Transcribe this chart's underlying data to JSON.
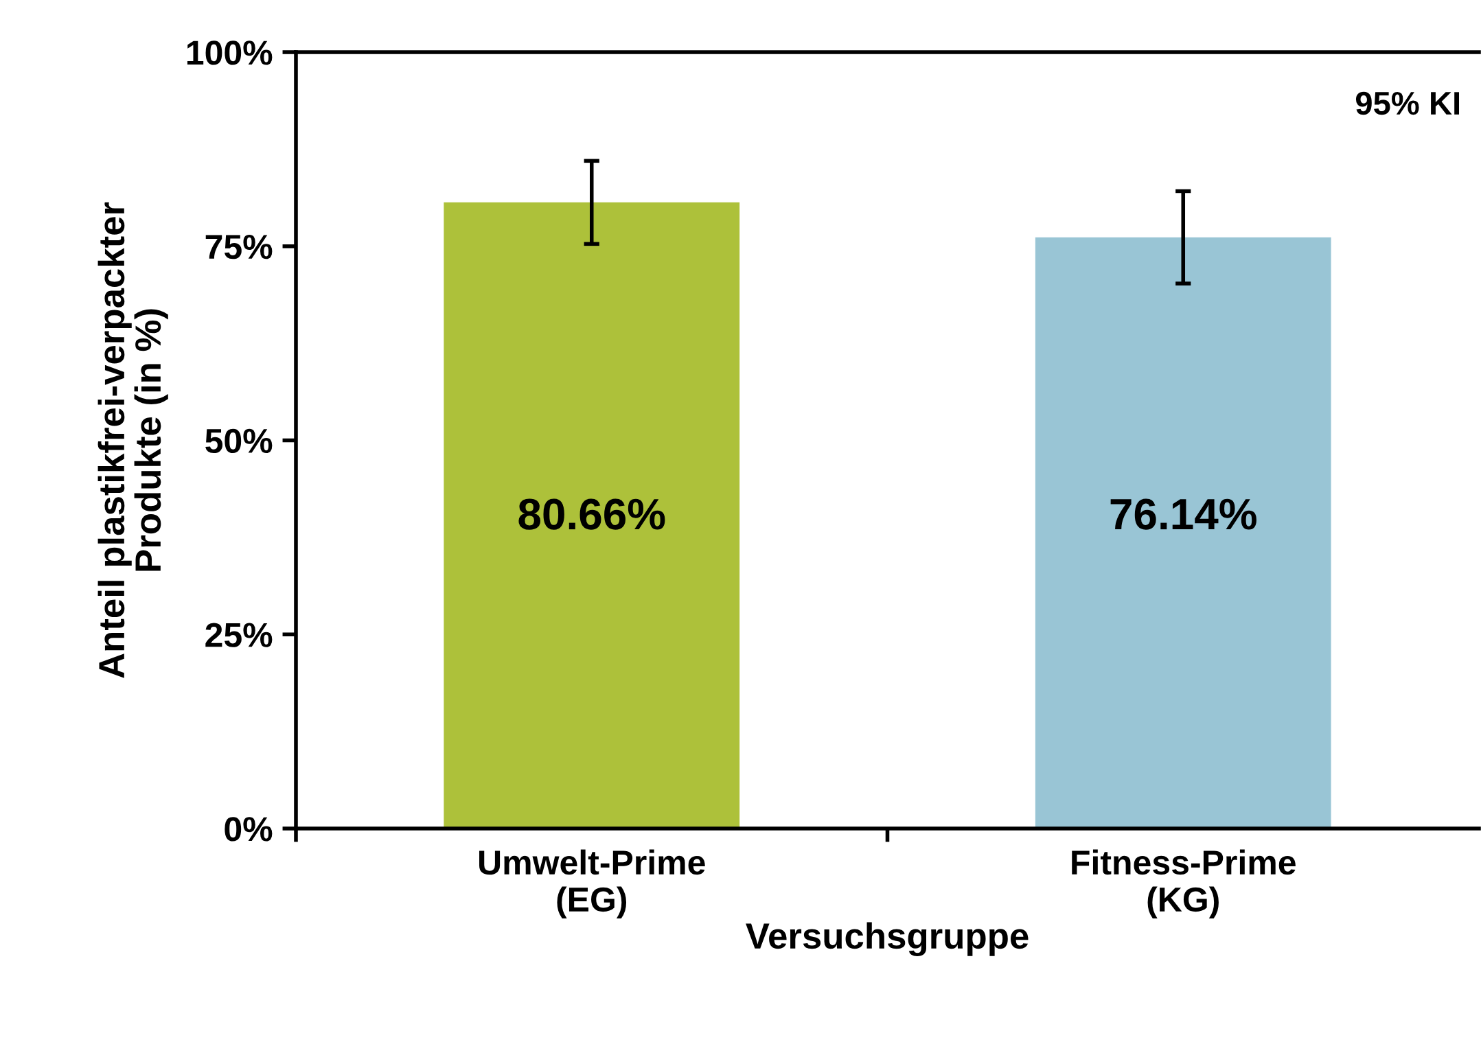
{
  "chart_data": {
    "type": "bar",
    "categories": [
      "Umwelt-Prime\n(EG)",
      "Fitness-Prime\n(KG)"
    ],
    "values": [
      80.66,
      76.14
    ],
    "colors": [
      "#adc13a",
      "#99c5d5"
    ],
    "errors": [
      [
        75.3,
        86.0
      ],
      [
        70.2,
        82.1
      ]
    ],
    "value_labels": [
      "80.66%",
      "76.14%"
    ],
    "xlabel": "Versuchsgruppe",
    "ylabel": "Anteil plastikfrei-verpackter\nProdukte (in %)",
    "ylim": [
      0,
      100
    ],
    "yticks": [
      {
        "value": 0,
        "label": "0%"
      },
      {
        "value": 25,
        "label": "25%"
      },
      {
        "value": 50,
        "label": "50%"
      },
      {
        "value": 75,
        "label": "75%"
      },
      {
        "value": 100,
        "label": "100%"
      }
    ],
    "annotations": [
      "95% KI"
    ],
    "grid": false,
    "legend": false
  }
}
